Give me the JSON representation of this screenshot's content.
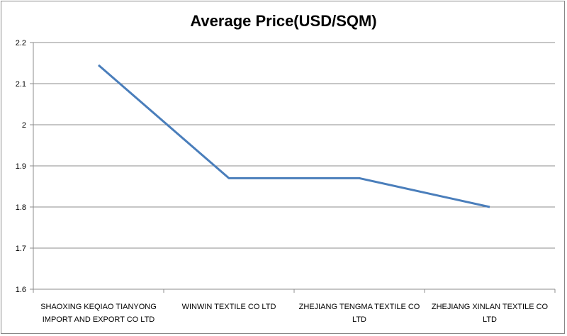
{
  "chart_data": {
    "type": "line",
    "title": "Average Price(USD/SQM)",
    "xlabel": "",
    "ylabel": "",
    "categories": [
      [
        "SHAOXING KEQIAO TIANYONG",
        "IMPORT AND EXPORT CO LTD"
      ],
      [
        "WINWIN TEXTILE  CO LTD"
      ],
      [
        "ZHEJIANG TENGMA  TEXTILE  CO",
        "LTD"
      ],
      [
        "ZHEJIANG XINLAN TEXTILE  CO",
        "LTD"
      ]
    ],
    "series": [
      {
        "name": "Average Price(USD/SQM)",
        "values": [
          2.145,
          1.87,
          1.87,
          1.8
        ],
        "color": "#4a7ebb"
      }
    ],
    "ylim": [
      1.6,
      2.2
    ],
    "yticks": [
      "1.6",
      "1.7",
      "1.8",
      "1.9",
      "2",
      "2.1",
      "2.2"
    ],
    "grid": true,
    "legend": "none"
  }
}
